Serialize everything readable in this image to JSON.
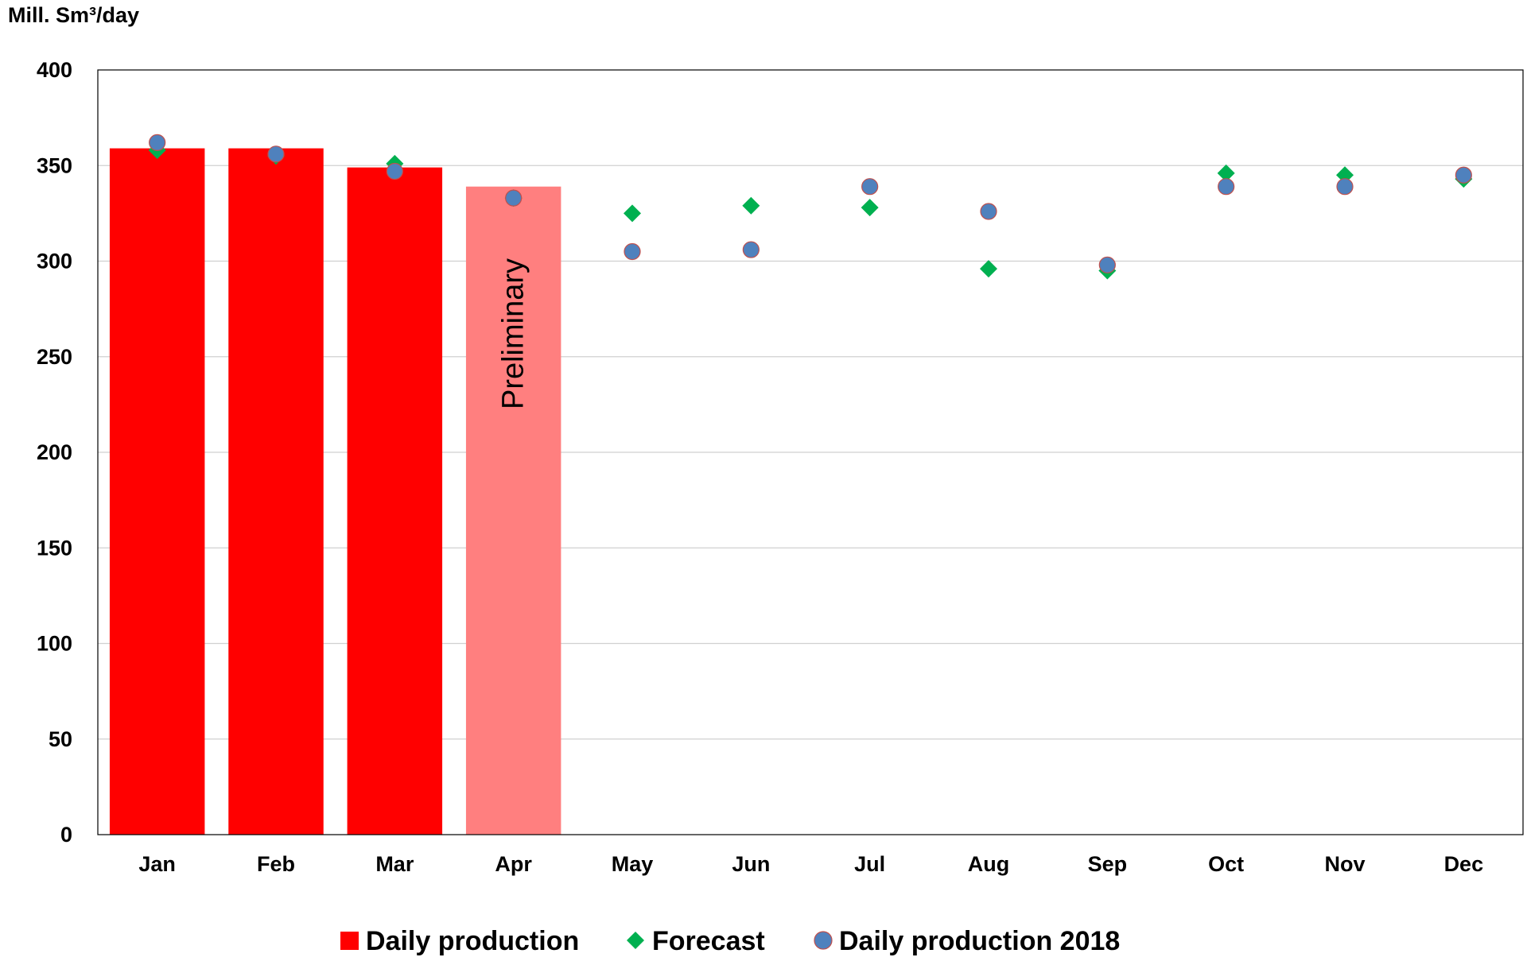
{
  "chart_data": {
    "type": "bar",
    "ylabel": "Mill. Sm³/day",
    "xlabel": "",
    "ylim": [
      0,
      400
    ],
    "yticks": [
      0,
      50,
      100,
      150,
      200,
      250,
      300,
      350,
      400
    ],
    "grid": true,
    "categories": [
      "Jan",
      "Feb",
      "Mar",
      "Apr",
      "May",
      "Jun",
      "Jul",
      "Aug",
      "Sep",
      "Oct",
      "Nov",
      "Dec"
    ],
    "series": [
      {
        "name": "Daily production",
        "kind": "bar",
        "color": "#ff0000",
        "values": [
          359,
          359,
          349,
          339,
          null,
          null,
          null,
          null,
          null,
          null,
          null,
          null
        ],
        "preliminary_color": "#ff7f7f",
        "preliminary_index": 3
      },
      {
        "name": "Forecast",
        "kind": "marker-diamond",
        "color": "#00b050",
        "values": [
          358,
          355,
          351,
          333,
          325,
          329,
          328,
          296,
          295,
          346,
          345,
          343
        ]
      },
      {
        "name": "Daily production 2018",
        "kind": "marker-circle",
        "color": "#4f81bd",
        "values": [
          362,
          356,
          347,
          333,
          305,
          306,
          339,
          326,
          298,
          339,
          339,
          345
        ]
      }
    ],
    "annotations": [
      {
        "text": "Preliminary",
        "category": "Apr"
      }
    ],
    "legend": {
      "placement": "bottom"
    }
  }
}
